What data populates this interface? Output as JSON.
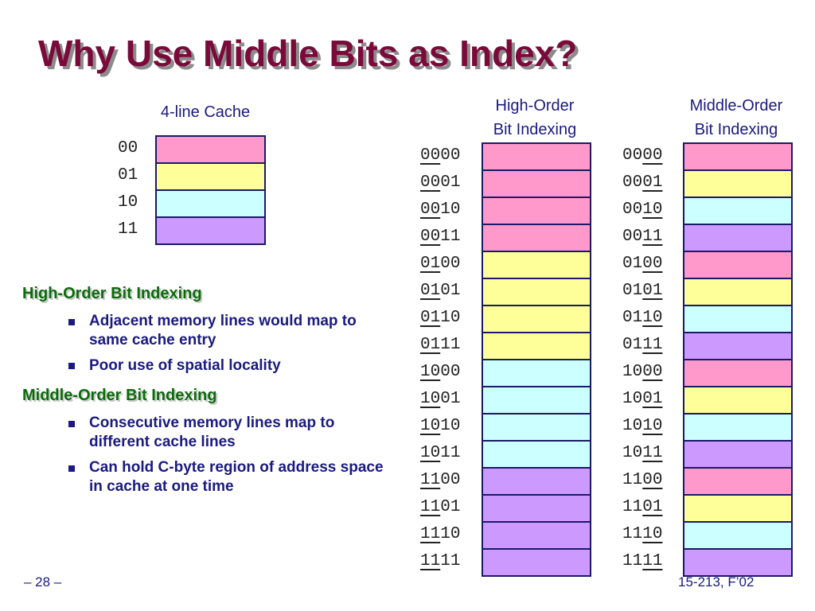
{
  "title": "Why Use Middle Bits as Index?",
  "cache": {
    "caption": "4-line Cache",
    "lines": [
      "00",
      "01",
      "10",
      "11"
    ]
  },
  "high_order": {
    "caption_line1": "High-Order",
    "caption_line2": "Bit Indexing"
  },
  "middle_order": {
    "caption_line1": "Middle-Order",
    "caption_line2": "Bit Indexing"
  },
  "addresses": [
    "0000",
    "0001",
    "0010",
    "0011",
    "0100",
    "0101",
    "0110",
    "0111",
    "1000",
    "1001",
    "1010",
    "1011",
    "1100",
    "1101",
    "1110",
    "1111"
  ],
  "colors": {
    "line_00": "#ff99cc",
    "line_01": "#ffff99",
    "line_10": "#ccffff",
    "line_11": "#cc99ff"
  },
  "bullets": {
    "high_heading": "High-Order Bit Indexing",
    "high_items": [
      "Adjacent memory lines would map to same cache entry",
      "Poor use of spatial locality"
    ],
    "middle_heading": "Middle-Order Bit Indexing",
    "middle_items": [
      "Consecutive memory lines map to different cache lines",
      "Can hold C-byte region of address space in cache at one time"
    ]
  },
  "footer": {
    "page": "– 28 –",
    "course": "15-213, F’02"
  }
}
